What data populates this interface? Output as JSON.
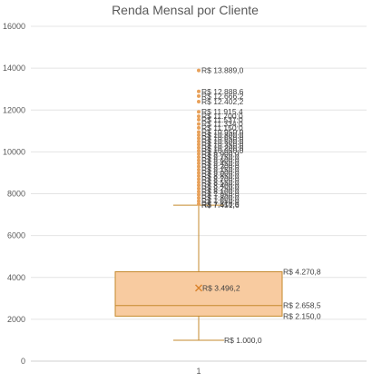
{
  "chart_data": {
    "type": "box",
    "title": "Renda Mensal por Cliente",
    "categories": [
      "1"
    ],
    "ylim": [
      0,
      16000
    ],
    "yticks": [
      0,
      2000,
      4000,
      6000,
      8000,
      10000,
      12000,
      14000,
      16000
    ],
    "ytick_labels": [
      "0",
      "2000",
      "4000",
      "6000",
      "8000",
      "10000",
      "12000",
      "14000",
      "16000"
    ],
    "grid": true,
    "colors": {
      "box_fill": "#f8cba0",
      "box_stroke": "#c58a2d",
      "whisker": "#c58a2d",
      "outlier": "#e8a15a",
      "mean_marker": "#d9822b"
    },
    "box": {
      "min": 1000.0,
      "q1": 2150.0,
      "median": 2658.5,
      "mean": 3496.2,
      "q3": 4270.8,
      "upper_whisker": 7451.6,
      "labels": {
        "min": "R$ 1.000,0",
        "q1": "R$ 2.150,0",
        "median": "R$ 2.658,5",
        "mean": "R$ 3.496,2",
        "q3": "R$ 4.270,8",
        "upper_whisker": "R$ 7.451,6"
      }
    },
    "outliers": [
      13889.0,
      12888.6,
      12666.2,
      12402.2,
      11915.4,
      11700,
      11537,
      11334,
      11150,
      10950,
      10800,
      10650,
      10500,
      10350,
      10200,
      10050,
      9900,
      9750,
      9600,
      9450,
      9300,
      9150,
      9000,
      8850,
      8700,
      8550,
      8400,
      8250,
      8100,
      7950,
      7800,
      7650,
      7510
    ],
    "outlier_labels": [
      {
        "value": 13889.0,
        "text": "R$ 13.889,0"
      },
      {
        "value": 12888.6,
        "text": "R$ 12.888,6"
      },
      {
        "value": 12666.2,
        "text": "R$ 12.666,2"
      },
      {
        "value": 12402.2,
        "text": "R$ 12.402,2"
      },
      {
        "value": 11915.4,
        "text": "R$ 11.915,4"
      },
      {
        "value": 11700,
        "text": "R$ 11.700,0"
      },
      {
        "value": 11537,
        "text": "R$ 11.537,0"
      },
      {
        "value": 11334,
        "text": "R$ 11.334,0"
      },
      {
        "value": 11150,
        "text": "R$ 11.150,0"
      },
      {
        "value": 10950,
        "text": "R$ 10.950,0"
      },
      {
        "value": 10800,
        "text": "R$ 10.800,0"
      },
      {
        "value": 10650,
        "text": "R$ 10.650,0"
      },
      {
        "value": 10500,
        "text": "R$ 10.500,0"
      },
      {
        "value": 10350,
        "text": "R$ 10.350,0"
      },
      {
        "value": 10200,
        "text": "R$ 10.200,0"
      },
      {
        "value": 10050,
        "text": "R$ 10.050,0"
      },
      {
        "value": 9900,
        "text": "R$ 9.900,0"
      },
      {
        "value": 9750,
        "text": "R$ 9.750,0"
      },
      {
        "value": 9600,
        "text": "R$ 9.600,0"
      },
      {
        "value": 9450,
        "text": "R$ 9.450,0"
      },
      {
        "value": 9300,
        "text": "R$ 9.300,0"
      },
      {
        "value": 9150,
        "text": "R$ 9.150,0"
      },
      {
        "value": 9000,
        "text": "R$ 9.000,0"
      },
      {
        "value": 8850,
        "text": "R$ 8.850,0"
      },
      {
        "value": 8700,
        "text": "R$ 8.700,0"
      },
      {
        "value": 8550,
        "text": "R$ 8.550,0"
      },
      {
        "value": 8400,
        "text": "R$ 8.400,0"
      },
      {
        "value": 8250,
        "text": "R$ 8.250,0"
      },
      {
        "value": 8100,
        "text": "R$ 8.100,0"
      },
      {
        "value": 7950,
        "text": "R$ 7.950,0"
      },
      {
        "value": 7800,
        "text": "R$ 7.800,0"
      },
      {
        "value": 7650,
        "text": "R$ 7.650,0"
      },
      {
        "value": 7510,
        "text": "R$ 7.510,0"
      }
    ]
  }
}
